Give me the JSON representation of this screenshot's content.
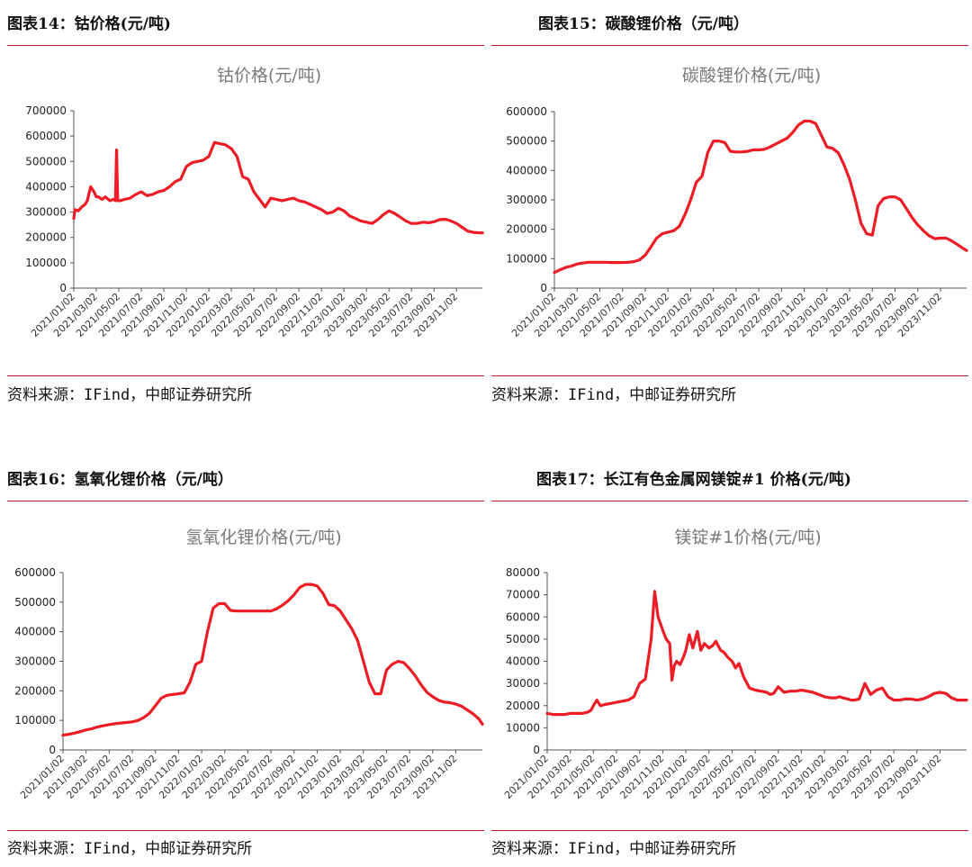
{
  "panels": [
    {
      "heading": "图表14：钴价格(元/吨)",
      "source": "资料来源：IFind，中邮证券研究所",
      "chart_data": {
        "type": "line",
        "title": "钴价格(元/吨)",
        "xlabel": "",
        "ylabel": "",
        "ylim": [
          0,
          700000
        ],
        "yticks": [
          "0",
          "100000",
          "200000",
          "300000",
          "400000",
          "500000",
          "600000",
          "700000"
        ],
        "xticks": [
          "2021/01/02",
          "2021/03/02",
          "2021/05/02",
          "2021/07/02",
          "2021/09/02",
          "2021/11/02",
          "2022/01/02",
          "2022/03/02",
          "2022/05/02",
          "2022/07/02",
          "2022/09/02",
          "2022/11/02",
          "2023/01/02",
          "2023/03/02",
          "2023/05/02",
          "2023/07/02",
          "2023/09/02",
          "2023/11/02"
        ],
        "grid": false,
        "legend": "none",
        "color": "#ee1c25",
        "series": [
          {
            "x": [
              0,
              0.1,
              0.4,
              0.7,
              1.0,
              1.2,
              1.5,
              1.8,
              2.0,
              2.2,
              2.5,
              2.8,
              3.2,
              3.5,
              3.7,
              3.8,
              3.9,
              4.1,
              4.5,
              5.0,
              5.5,
              6.0,
              6.5,
              7.0,
              7.5,
              8.0,
              8.5,
              9.0,
              9.5,
              10.0,
              10.5,
              11.0,
              11.5,
              12.0,
              12.5,
              13.0,
              13.5,
              14.0,
              14.5,
              15.0,
              15.5,
              16.0,
              16.5,
              17.0,
              17.5,
              18.0,
              18.5,
              19.0,
              19.5,
              20.0,
              20.5,
              21.0,
              21.5,
              22.0,
              22.5,
              23.0,
              23.5,
              24.0,
              24.5,
              25.0,
              25.5,
              26.0,
              26.5,
              27.0,
              27.5,
              28.0,
              28.5,
              29.0,
              29.5,
              30.0,
              30.5,
              31.0,
              31.5,
              32.0,
              32.5,
              33.0,
              33.5,
              34.0,
              34.5,
              35.0,
              35.5,
              36.0,
              36.3
            ],
            "y": [
              275000,
              310000,
              305000,
              320000,
              330000,
              345000,
              400000,
              380000,
              360000,
              360000,
              350000,
              360000,
              345000,
              350000,
              345000,
              545000,
              345000,
              345000,
              350000,
              355000,
              370000,
              380000,
              365000,
              370000,
              380000,
              385000,
              400000,
              420000,
              430000,
              480000,
              495000,
              500000,
              505000,
              520000,
              575000,
              570000,
              565000,
              550000,
              520000,
              440000,
              430000,
              380000,
              350000,
              320000,
              355000,
              350000,
              345000,
              350000,
              355000,
              345000,
              340000,
              330000,
              320000,
              310000,
              295000,
              300000,
              315000,
              305000,
              285000,
              275000,
              265000,
              260000,
              255000,
              270000,
              290000,
              305000,
              295000,
              280000,
              265000,
              255000,
              255000,
              260000,
              258000,
              262000,
              270000,
              272000,
              265000,
              255000,
              240000,
              225000,
              220000,
              218000,
              218000
            ]
          }
        ]
      }
    },
    {
      "heading": "图表15：碳酸锂价格（元/吨）",
      "source": "资料来源：IFind，中邮证券研究所",
      "chart_data": {
        "type": "line",
        "title": "碳酸锂价格(元/吨)",
        "xlabel": "",
        "ylabel": "",
        "ylim": [
          0,
          600000
        ],
        "yticks": [
          "0",
          "100000",
          "200000",
          "300000",
          "400000",
          "500000",
          "600000"
        ],
        "xticks": [
          "2021/01/02",
          "2021/03/02",
          "2021/05/02",
          "2021/07/02",
          "2021/09/02",
          "2021/11/02",
          "2022/01/02",
          "2022/03/02",
          "2022/05/02",
          "2022/07/02",
          "2022/09/02",
          "2022/11/02",
          "2023/01/02",
          "2023/03/02",
          "2023/05/02",
          "2023/07/02",
          "2023/09/02",
          "2023/11/02"
        ],
        "grid": false,
        "legend": "none",
        "color": "#ee1c25",
        "series": [
          {
            "x": [
              0,
              0.5,
              1,
              1.5,
              2,
              2.5,
              3,
              3.5,
              4,
              4.5,
              5,
              5.5,
              6,
              6.5,
              7,
              7.5,
              8,
              8.5,
              9,
              9.5,
              10,
              10.5,
              11,
              11.5,
              12,
              12.5,
              13,
              13.5,
              14,
              14.5,
              15,
              15.5,
              16,
              16.5,
              17,
              17.5,
              18,
              18.5,
              19,
              19.5,
              20,
              20.5,
              21,
              21.5,
              22,
              22.5,
              23,
              23.5,
              24,
              24.5,
              25,
              25.5,
              26,
              26.5,
              27,
              27.5,
              28,
              28.5,
              29,
              29.5,
              30,
              30.5,
              31,
              31.5,
              32,
              32.5,
              33,
              33.5,
              34,
              34.5,
              35,
              35.5,
              36,
              36.3
            ],
            "y": [
              53000,
              62000,
              70000,
              75000,
              82000,
              85000,
              88000,
              88000,
              88000,
              88000,
              87000,
              87000,
              87000,
              88000,
              90000,
              96000,
              112000,
              140000,
              170000,
              185000,
              190000,
              195000,
              210000,
              250000,
              300000,
              360000,
              380000,
              460000,
              500000,
              500000,
              495000,
              465000,
              463000,
              463000,
              465000,
              470000,
              470000,
              472000,
              480000,
              490000,
              500000,
              510000,
              530000,
              555000,
              568000,
              568000,
              560000,
              520000,
              480000,
              475000,
              460000,
              420000,
              370000,
              300000,
              220000,
              185000,
              180000,
              280000,
              305000,
              310000,
              310000,
              300000,
              270000,
              240000,
              215000,
              195000,
              178000,
              168000,
              170000,
              170000,
              160000,
              148000,
              135000,
              128000
            ]
          }
        ]
      }
    },
    {
      "heading": "图表16：氢氧化锂价格（元/吨）",
      "source": "资料来源：IFind，中邮证券研究所",
      "chart_data": {
        "type": "line",
        "title": "氢氧化锂价格(元/吨)",
        "xlabel": "",
        "ylabel": "",
        "ylim": [
          0,
          600000
        ],
        "yticks": [
          "0",
          "100000",
          "200000",
          "300000",
          "400000",
          "500000",
          "600000"
        ],
        "xticks": [
          "2021/01/02",
          "2021/03/02",
          "2021/05/02",
          "2021/07/02",
          "2021/09/02",
          "2021/11/02",
          "2022/01/02",
          "2022/03/02",
          "2022/05/02",
          "2022/07/02",
          "2022/09/02",
          "2022/11/02",
          "2023/01/02",
          "2023/03/02",
          "2023/05/02",
          "2023/07/02",
          "2023/09/02",
          "2023/11/02"
        ],
        "grid": false,
        "legend": "none",
        "color": "#ee1c25",
        "series": [
          {
            "x": [
              0,
              0.5,
              1,
              1.5,
              2,
              2.5,
              3,
              3.5,
              4,
              4.5,
              5,
              5.5,
              6,
              6.5,
              7,
              7.5,
              8,
              8.5,
              9,
              9.5,
              10,
              10.5,
              11,
              11.5,
              12,
              12.5,
              13,
              13.5,
              14,
              14.5,
              15,
              15.5,
              16,
              16.5,
              17,
              17.5,
              18,
              18.5,
              19,
              19.5,
              20,
              20.5,
              21,
              21.5,
              22,
              22.5,
              23,
              23.5,
              24,
              24.5,
              25,
              25.5,
              26,
              26.5,
              27,
              27.5,
              28,
              28.5,
              29,
              29.5,
              30,
              30.5,
              31,
              31.5,
              32,
              32.5,
              33,
              33.5,
              34,
              34.5,
              35,
              35.5,
              36,
              36.3
            ],
            "y": [
              50000,
              53000,
              57000,
              62000,
              68000,
              72000,
              78000,
              82000,
              86000,
              89000,
              91000,
              93000,
              95000,
              100000,
              110000,
              125000,
              150000,
              175000,
              185000,
              188000,
              190000,
              193000,
              230000,
              290000,
              300000,
              400000,
              480000,
              495000,
              495000,
              472000,
              470000,
              470000,
              470000,
              470000,
              470000,
              470000,
              470000,
              478000,
              490000,
              505000,
              525000,
              550000,
              560000,
              560000,
              555000,
              530000,
              492000,
              488000,
              470000,
              440000,
              410000,
              370000,
              300000,
              230000,
              190000,
              190000,
              270000,
              290000,
              300000,
              295000,
              275000,
              250000,
              220000,
              195000,
              180000,
              168000,
              162000,
              160000,
              155000,
              148000,
              135000,
              122000,
              105000,
              87000
            ]
          }
        ]
      }
    },
    {
      "heading": "图表17：长江有色金属网镁锭#1 价格(元/吨)",
      "source": "资料来源：IFind，中邮证券研究所",
      "chart_data": {
        "type": "line",
        "title": "镁锭#1价格(元/吨)",
        "xlabel": "",
        "ylabel": "",
        "ylim": [
          0,
          80000
        ],
        "yticks": [
          "0",
          "10000",
          "20000",
          "30000",
          "40000",
          "50000",
          "60000",
          "70000",
          "80000"
        ],
        "xticks": [
          "2021/01/02",
          "2021/03/02",
          "2021/05/02",
          "2021/07/02",
          "2021/09/02",
          "2021/11/02",
          "2022/01/02",
          "2022/03/02",
          "2022/05/02",
          "2022/07/02",
          "2022/09/02",
          "2022/11/02",
          "2023/01/02",
          "2023/03/02",
          "2023/05/02",
          "2023/07/02",
          "2023/09/02",
          "2023/11/02"
        ],
        "grid": false,
        "legend": "none",
        "color": "#ee1c25",
        "series": [
          {
            "x": [
              0,
              0.5,
              1,
              1.5,
              2,
              2.5,
              3,
              3.5,
              3.8,
              4,
              4.3,
              4.6,
              5,
              5.5,
              6,
              6.5,
              7,
              7.5,
              8,
              8.5,
              9,
              9.3,
              9.6,
              9.8,
              10,
              10.3,
              10.6,
              10.8,
              11,
              11.2,
              11.5,
              11.8,
              12,
              12.3,
              12.6,
              13,
              13.3,
              13.6,
              14,
              14.3,
              14.6,
              15,
              15.3,
              15.6,
              16,
              16.3,
              16.6,
              17,
              17.5,
              18,
              18.5,
              19,
              19.3,
              19.6,
              20,
              20.5,
              21,
              21.5,
              22,
              22.5,
              23,
              23.5,
              24,
              24.5,
              25,
              25.3,
              25.6,
              26,
              26.3,
              26.6,
              27,
              27.5,
              28,
              28.5,
              29,
              29.5,
              30,
              30.5,
              31,
              31.5,
              32,
              32.5,
              33,
              33.5,
              34,
              34.5,
              35,
              35.5,
              36,
              36.3
            ],
            "y": [
              16500,
              16000,
              16000,
              16000,
              16500,
              16500,
              16500,
              17000,
              18000,
              20000,
              22500,
              20000,
              20500,
              21000,
              21500,
              22000,
              22500,
              24000,
              30000,
              32000,
              50000,
              71500,
              60000,
              57000,
              54000,
              50000,
              48000,
              31500,
              38000,
              40000,
              38500,
              42000,
              45000,
              52000,
              46000,
              53500,
              45000,
              48000,
              46000,
              47000,
              49000,
              45000,
              44000,
              42000,
              40000,
              37000,
              39000,
              33000,
              28000,
              27000,
              26500,
              26000,
              25000,
              25500,
              28500,
              26000,
              26500,
              26500,
              27000,
              26500,
              26000,
              25000,
              24000,
              23500,
              23500,
              24000,
              23500,
              23000,
              22500,
              22500,
              23000,
              30000,
              25000,
              27000,
              28000,
              24000,
              22500,
              22500,
              23000,
              23000,
              22500,
              23000,
              24000,
              25500,
              26000,
              25500,
              23500,
              22500,
              22500,
              22500
            ]
          }
        ]
      }
    }
  ]
}
